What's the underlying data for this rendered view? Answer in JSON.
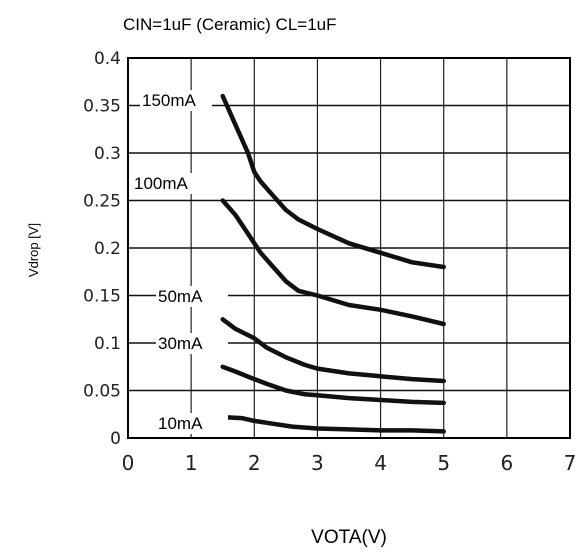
{
  "chart_data": {
    "type": "line",
    "title": "CIN=1uF (Ceramic) CL=1uF",
    "xlabel": "VOTA(V)",
    "ylabel": "Vdrop [V]",
    "xlim": [
      0,
      7
    ],
    "ylim": [
      0,
      0.4
    ],
    "grid": true,
    "x_ticks": [
      "0",
      "1",
      "2",
      "3",
      "4",
      "5",
      "6",
      "7"
    ],
    "y_ticks": [
      "0",
      "0.05",
      "0.1",
      "0.15",
      "0.2",
      "0.25",
      "0.3",
      "0.35",
      "0.4"
    ],
    "series": [
      {
        "name": "150mA",
        "x": [
          1.5,
          1.7,
          1.9,
          2.0,
          2.1,
          2.3,
          2.5,
          2.7,
          3.0,
          3.5,
          4.0,
          4.5,
          5.0
        ],
        "y": [
          0.36,
          0.33,
          0.3,
          0.28,
          0.27,
          0.255,
          0.24,
          0.23,
          0.22,
          0.205,
          0.195,
          0.185,
          0.18
        ]
      },
      {
        "name": "100mA",
        "x": [
          1.5,
          1.7,
          1.9,
          2.1,
          2.3,
          2.5,
          2.7,
          3.0,
          3.5,
          4.0,
          4.5,
          5.0
        ],
        "y": [
          0.25,
          0.235,
          0.215,
          0.195,
          0.18,
          0.165,
          0.155,
          0.15,
          0.14,
          0.135,
          0.128,
          0.12
        ]
      },
      {
        "name": "50mA",
        "x": [
          1.5,
          1.7,
          2.0,
          2.2,
          2.5,
          2.8,
          3.0,
          3.5,
          4.0,
          4.5,
          5.0
        ],
        "y": [
          0.125,
          0.115,
          0.105,
          0.095,
          0.085,
          0.077,
          0.073,
          0.068,
          0.065,
          0.062,
          0.06
        ]
      },
      {
        "name": "30mA",
        "x": [
          1.5,
          1.7,
          2.0,
          2.2,
          2.5,
          2.8,
          3.0,
          3.5,
          4.0,
          4.5,
          5.0
        ],
        "y": [
          0.075,
          0.07,
          0.062,
          0.057,
          0.05,
          0.046,
          0.045,
          0.042,
          0.04,
          0.038,
          0.037
        ]
      },
      {
        "name": "10mA",
        "x": [
          1.5,
          1.8,
          2.0,
          2.3,
          2.6,
          3.0,
          3.5,
          4.0,
          4.5,
          5.0
        ],
        "y": [
          0.022,
          0.021,
          0.018,
          0.015,
          0.012,
          0.01,
          0.009,
          0.008,
          0.008,
          0.007
        ]
      }
    ]
  }
}
